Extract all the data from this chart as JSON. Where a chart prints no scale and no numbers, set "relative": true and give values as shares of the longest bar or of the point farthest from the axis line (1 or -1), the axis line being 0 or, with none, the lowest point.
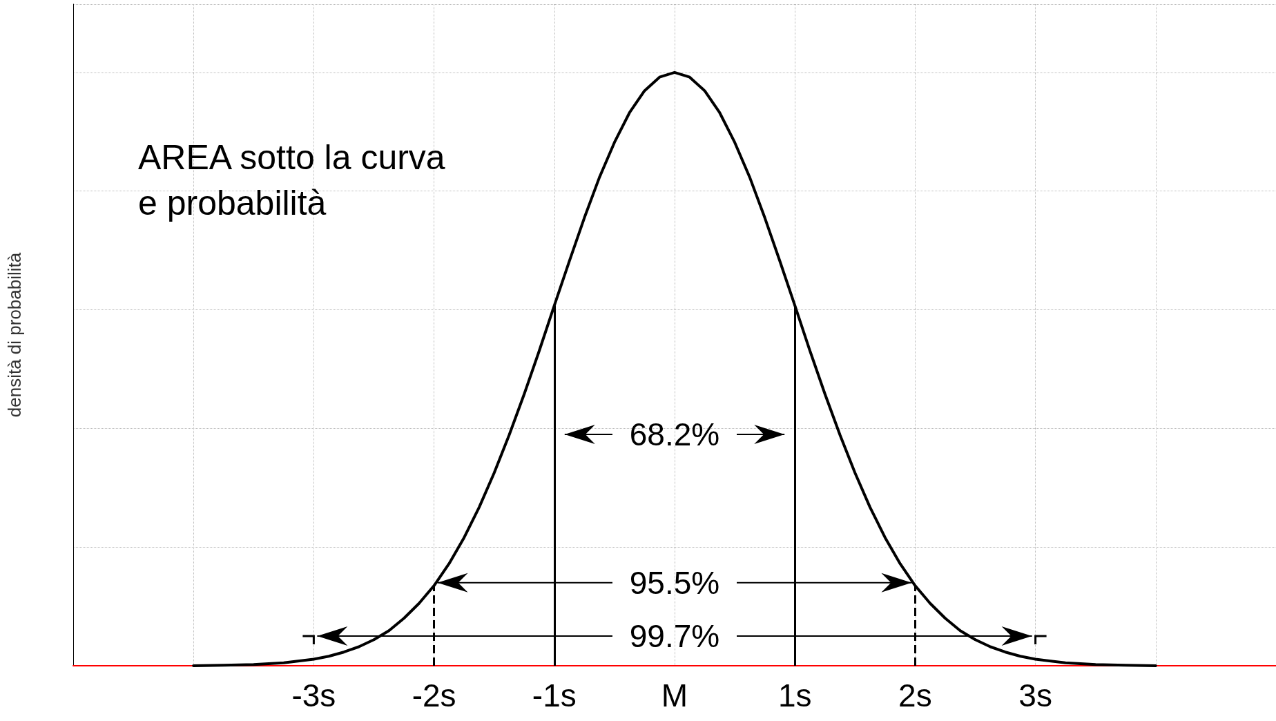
{
  "chart_data": {
    "type": "line",
    "title": "AREA sotto la curva\ne probabilità",
    "ylabel": "densità di probabilità",
    "relative": true,
    "x": [
      -4,
      -3.75,
      -3.5,
      -3.25,
      -3,
      -2.875,
      -2.75,
      -2.625,
      -2.5,
      -2.375,
      -2.25,
      -2.125,
      -2,
      -1.875,
      -1.75,
      -1.625,
      -1.5,
      -1.375,
      -1.25,
      -1.125,
      -1,
      -0.875,
      -0.75,
      -0.625,
      -0.5,
      -0.375,
      -0.25,
      -0.125,
      0,
      0.125,
      0.25,
      0.375,
      0.5,
      0.625,
      0.75,
      0.875,
      1,
      1.125,
      1.25,
      1.375,
      1.5,
      1.625,
      1.75,
      1.875,
      2,
      2.125,
      2.25,
      2.375,
      2.5,
      2.625,
      2.75,
      2.875,
      3,
      3.25,
      3.5,
      3.75,
      4
    ],
    "series": [
      {
        "color": "#000000",
        "values": [
          0,
          0.001,
          0.002,
          0.005,
          0.011,
          0.016,
          0.023,
          0.032,
          0.044,
          0.059,
          0.08,
          0.105,
          0.135,
          0.172,
          0.216,
          0.267,
          0.325,
          0.389,
          0.458,
          0.531,
          0.607,
          0.682,
          0.755,
          0.823,
          0.882,
          0.932,
          0.969,
          0.992,
          1,
          0.992,
          0.969,
          0.932,
          0.882,
          0.823,
          0.755,
          0.682,
          0.607,
          0.531,
          0.458,
          0.389,
          0.325,
          0.267,
          0.216,
          0.172,
          0.135,
          0.105,
          0.08,
          0.059,
          0.044,
          0.032,
          0.023,
          0.016,
          0.011,
          0.005,
          0.002,
          0.001,
          0
        ]
      }
    ],
    "xlim": [
      -5,
      5
    ],
    "xticks": [
      {
        "value": -4,
        "label": null
      },
      {
        "value": -3,
        "label": "-3s"
      },
      {
        "value": -2,
        "label": "-2s"
      },
      {
        "value": -1,
        "label": "-1s"
      },
      {
        "value": 0,
        "label": "M"
      },
      {
        "value": 1,
        "label": "1s"
      },
      {
        "value": 2,
        "label": "2s"
      },
      {
        "value": 3,
        "label": "3s"
      },
      {
        "value": 4,
        "label": null
      }
    ],
    "ref_lines": [
      {
        "axis": "x",
        "value": -1,
        "line_style": "solid",
        "color": "#000000"
      },
      {
        "axis": "x",
        "value": 1,
        "line_style": "solid",
        "color": "#000000"
      },
      {
        "axis": "x",
        "value": -2,
        "line_style": "dashed",
        "color": "#000000"
      },
      {
        "axis": "x",
        "value": 2,
        "line_style": "dashed",
        "color": "#000000"
      }
    ],
    "annotations": [
      "68.2%",
      "95.5%",
      "99.7%"
    ],
    "grid": true,
    "marker": "none",
    "line_style": "solid"
  }
}
